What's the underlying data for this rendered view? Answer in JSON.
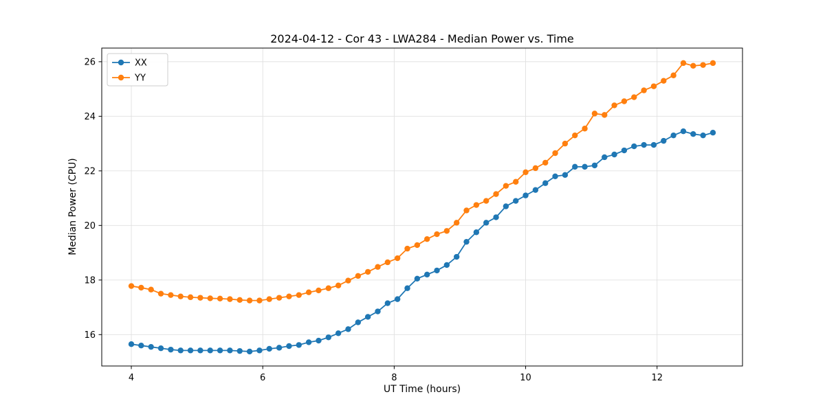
{
  "chart_data": {
    "type": "line",
    "title": "2024-04-12 - Cor 43 - LWA284 - Median Power vs. Time",
    "xlabel": "UT Time (hours)",
    "ylabel": "Median Power (CPU)",
    "xlim": [
      3.55,
      13.3
    ],
    "ylim": [
      14.85,
      26.5
    ],
    "xticks": [
      4,
      6,
      8,
      10,
      12
    ],
    "yticks": [
      16,
      18,
      20,
      22,
      24,
      26
    ],
    "grid": true,
    "legend_position": "upper left",
    "background_color": "#ffffff",
    "grid_color": "#e0e0e0",
    "x": [
      4.0,
      4.15,
      4.3,
      4.45,
      4.6,
      4.75,
      4.9,
      5.05,
      5.2,
      5.35,
      5.5,
      5.65,
      5.8,
      5.95,
      6.1,
      6.25,
      6.4,
      6.55,
      6.7,
      6.85,
      7.0,
      7.15,
      7.3,
      7.45,
      7.6,
      7.75,
      7.9,
      8.05,
      8.2,
      8.35,
      8.5,
      8.65,
      8.8,
      8.95,
      9.1,
      9.25,
      9.4,
      9.55,
      9.7,
      9.85,
      10.0,
      10.15,
      10.3,
      10.45,
      10.6,
      10.75,
      10.9,
      11.05,
      11.2,
      11.35,
      11.5,
      11.65,
      11.8,
      11.95,
      12.1,
      12.25,
      12.4,
      12.55,
      12.7,
      12.85
    ],
    "series": [
      {
        "name": "XX",
        "color": "#1f77b4",
        "values": [
          15.65,
          15.6,
          15.55,
          15.5,
          15.45,
          15.42,
          15.42,
          15.42,
          15.42,
          15.42,
          15.42,
          15.4,
          15.38,
          15.42,
          15.48,
          15.52,
          15.58,
          15.62,
          15.72,
          15.78,
          15.9,
          16.05,
          16.2,
          16.45,
          16.65,
          16.85,
          17.15,
          17.3,
          17.7,
          18.05,
          18.2,
          18.35,
          18.55,
          18.85,
          19.4,
          19.75,
          20.1,
          20.3,
          20.7,
          20.9,
          21.1,
          21.3,
          21.55,
          21.8,
          21.85,
          22.15,
          22.15,
          22.2,
          22.5,
          22.6,
          22.75,
          22.9,
          22.95,
          22.95,
          23.1,
          23.3,
          23.45,
          23.35,
          23.3,
          23.4
        ]
      },
      {
        "name": "YY",
        "color": "#ff7f0e",
        "values": [
          17.78,
          17.72,
          17.65,
          17.5,
          17.45,
          17.4,
          17.37,
          17.35,
          17.33,
          17.32,
          17.3,
          17.27,
          17.25,
          17.25,
          17.3,
          17.35,
          17.4,
          17.45,
          17.55,
          17.62,
          17.7,
          17.8,
          17.98,
          18.15,
          18.3,
          18.48,
          18.65,
          18.8,
          19.15,
          19.28,
          19.5,
          19.68,
          19.8,
          20.1,
          20.55,
          20.75,
          20.9,
          21.15,
          21.45,
          21.6,
          21.95,
          22.1,
          22.3,
          22.65,
          23.0,
          23.3,
          23.55,
          24.1,
          24.05,
          24.4,
          24.55,
          24.7,
          24.95,
          25.1,
          25.3,
          25.5,
          25.95,
          25.85,
          25.88,
          25.95
        ]
      }
    ]
  }
}
